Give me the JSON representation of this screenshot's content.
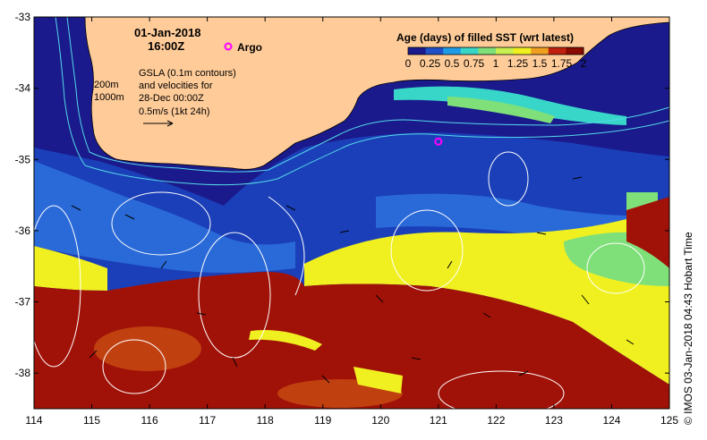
{
  "header": {
    "date": "01-Jan-2018",
    "time": "16:00Z",
    "argo_label": "Argo"
  },
  "colorbar": {
    "title": "Age (days) of filled SST (wrt latest)",
    "ticks": [
      "0",
      "0.25",
      "0.5",
      "0.75",
      "1",
      "1.25",
      "1.5",
      "1.75",
      "2"
    ],
    "colors": [
      "#1a1a8c",
      "#2050c8",
      "#1e9be6",
      "#38d6c8",
      "#7fe07a",
      "#c8f050",
      "#f0f020",
      "#f0a020",
      "#c02010",
      "#8b0a00"
    ]
  },
  "legend": {
    "contour_200": "200m",
    "contour_1000": "1000m",
    "gsla_line1": "GSLA (0.1m contours)",
    "gsla_line2": "and velocities for",
    "gsla_line3": "28-Dec 00:00Z",
    "scale_label": "0.5m/s (1kt 24h)"
  },
  "axes": {
    "x_ticks": [
      "114",
      "115",
      "116",
      "117",
      "118",
      "119",
      "120",
      "121",
      "122",
      "123",
      "124",
      "125"
    ],
    "y_ticks": [
      "-33",
      "-34",
      "-35",
      "-36",
      "-37",
      "-38"
    ],
    "lon_range": [
      114,
      125
    ],
    "lat_range": [
      -38.5,
      -33
    ]
  },
  "argo_float": {
    "lon": 121.0,
    "lat": -34.75,
    "color": "#ff00ff"
  },
  "colors": {
    "land": "#ffcc99",
    "deep_blue": "#1a3fb8",
    "dark_navy": "#1a1a8c",
    "mid_blue": "#2a6ad8",
    "yellow": "#f0f020",
    "dark_red": "#a01208",
    "brown_red": "#c04010",
    "green": "#7fe07a",
    "cyan": "#38d6c8",
    "contour": "#ffffff",
    "bathy": "#55d8e8"
  },
  "credit": "© IMOS 03-Jan-2018 04:43 Hobart Time"
}
